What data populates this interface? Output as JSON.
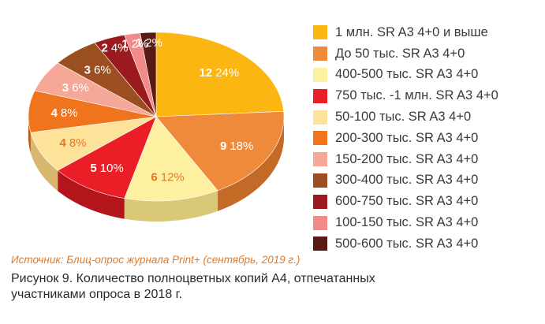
{
  "chart_data": {
    "type": "pie",
    "slices": [
      {
        "label": "1 млн. SR A3 4+0 и выше",
        "count": "12",
        "percent": "24%",
        "value": 24,
        "color": "#fbb612",
        "side": "#c88a0a",
        "text_color": "#ffffff"
      },
      {
        "label": "До 50 тыс. SR A3 4+0",
        "count": "9",
        "percent": "18%",
        "value": 18,
        "color": "#f08a3b",
        "side": "#c26a26",
        "text_color": "#ffffff"
      },
      {
        "label": "400-500 тыс. SR A3 4+0",
        "count": "6",
        "percent": "12%",
        "value": 12,
        "color": "#fdf0a0",
        "side": "#d8c878",
        "text_color": "#e07a2a"
      },
      {
        "label": "750 тыс. -1 млн. SR A3 4+0",
        "count": "5",
        "percent": "10%",
        "value": 10,
        "color": "#ea1e27",
        "side": "#b4151c",
        "text_color": "#ffffff"
      },
      {
        "label": "50-100 тыс. SR A3 4+0",
        "count": "4",
        "percent": "8%",
        "value": 8,
        "color": "#fde29a",
        "side": "#d8b86e",
        "text_color": "#e07a2a"
      },
      {
        "label": "200-300 тыс. SR A3 4+0",
        "count": "4",
        "percent": "8%",
        "value": 8,
        "color": "#f0741e",
        "side": "#bd5812",
        "text_color": "#ffffff"
      },
      {
        "label": "150-200 тыс. SR A3 4+0",
        "count": "3",
        "percent": "6%",
        "value": 6,
        "color": "#f6a898",
        "side": "#c98070",
        "text_color": "#ffffff"
      },
      {
        "label": "300-400 тыс. SR A3 4+0",
        "count": "3",
        "percent": "6%",
        "value": 6,
        "color": "#9b4e1f",
        "side": "#6e3412",
        "text_color": "#ffffff"
      },
      {
        "label": "600-750 тыс. SR A3 4+0",
        "count": "2",
        "percent": "4%",
        "value": 4,
        "color": "#9b1a1f",
        "side": "#6b1014",
        "text_color": "#ffffff"
      },
      {
        "label": "100-150 тыс. SR A3 4+0",
        "count": "1",
        "percent": "2%",
        "value": 2,
        "color": "#f28a8a",
        "side": "#c56464",
        "text_color": "#ffffff"
      },
      {
        "label": "500-600 тыс. SR A3 4+0",
        "count": "1",
        "percent": "2%",
        "value": 2,
        "color": "#5a1a14",
        "side": "#3a0d09",
        "text_color": "#ffffff"
      }
    ],
    "legend_placement": "right"
  },
  "source": "Источник: Блиц-опрос журнала Print+ (сентябрь, 2019 г.)",
  "caption": "Рисунок 9. Количество полноцветных копий А4, отпечатанных участниками опроса в 2018 г."
}
